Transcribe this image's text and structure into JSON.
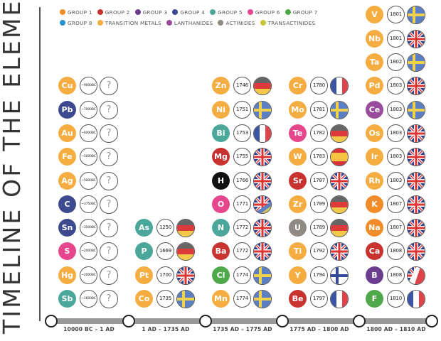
{
  "title": "TIMELINE OF THE ELEMENTS",
  "legend": [
    {
      "label": "GROUP 1",
      "color": "#f28c28"
    },
    {
      "label": "GROUP 2",
      "color": "#c8322f"
    },
    {
      "label": "GROUP 3",
      "color": "#6a3d8f"
    },
    {
      "label": "GROUP 4",
      "color": "#3d4a8f"
    },
    {
      "label": "GROUP 5",
      "color": "#4aa79a"
    },
    {
      "label": "GROUP 6",
      "color": "#e6468c"
    },
    {
      "label": "GROUP 7",
      "color": "#4fa84a"
    },
    {
      "label": "GROUP 8",
      "color": "#2f8fd1"
    },
    {
      "label": "TRANSITION METALS",
      "color": "#f5ad42"
    },
    {
      "label": "LANTHANIDES",
      "color": "#9a4c9c"
    },
    {
      "label": "ACTINIDES",
      "color": "#8f8a84"
    },
    {
      "label": "TRANSACTINIDES",
      "color": "#c8c43a"
    }
  ],
  "eras": [
    {
      "label": "10000 BC – 1 AD",
      "elements": [
        {
          "symbol": "Cu",
          "year": "~9000BC",
          "color": "#f5ad42",
          "country": "unknown"
        },
        {
          "symbol": "Pb",
          "year": "~7000BC",
          "color": "#3d4a8f",
          "country": "unknown"
        },
        {
          "symbol": "Au",
          "year": "~6000BC",
          "color": "#f5ad42",
          "country": "unknown"
        },
        {
          "symbol": "Fe",
          "year": "~5000BC",
          "color": "#f5ad42",
          "country": "unknown"
        },
        {
          "symbol": "Ag",
          "year": "~5000BC",
          "color": "#f5ad42",
          "country": "unknown"
        },
        {
          "symbol": "C",
          "year": "~3750BC",
          "color": "#3d4a8f",
          "country": "unknown"
        },
        {
          "symbol": "Sn",
          "year": "~3500BC",
          "color": "#3d4a8f",
          "country": "unknown"
        },
        {
          "symbol": "S",
          "year": "~2000BC",
          "color": "#e6468c",
          "country": "unknown"
        },
        {
          "symbol": "Hg",
          "year": "~2000BC",
          "color": "#f5ad42",
          "country": "unknown"
        },
        {
          "symbol": "Sb",
          "year": "~1600BC",
          "color": "#4aa79a",
          "country": "unknown"
        }
      ]
    },
    {
      "label": "1 AD – 1735 AD",
      "elements": [
        {
          "symbol": "As",
          "year": "1250",
          "color": "#4aa79a",
          "country": "germany"
        },
        {
          "symbol": "P",
          "year": "1669",
          "color": "#4aa79a",
          "country": "germany"
        },
        {
          "symbol": "Pt",
          "year": "1700",
          "color": "#f5ad42",
          "country": "uk"
        },
        {
          "symbol": "Co",
          "year": "1735",
          "color": "#f5ad42",
          "country": "sweden"
        }
      ]
    },
    {
      "label": "1735 AD – 1775 AD",
      "elements": [
        {
          "symbol": "Zn",
          "year": "1746",
          "color": "#f5ad42",
          "country": "germany"
        },
        {
          "symbol": "Ni",
          "year": "1751",
          "color": "#f5ad42",
          "country": "sweden"
        },
        {
          "symbol": "Bi",
          "year": "1753",
          "color": "#4aa79a",
          "country": "france"
        },
        {
          "symbol": "Mg",
          "year": "1755",
          "color": "#c8322f",
          "country": "uk"
        },
        {
          "symbol": "H",
          "year": "1766",
          "color": "#111111",
          "country": "uk"
        },
        {
          "symbol": "O",
          "year": "1771",
          "color": "#e6468c",
          "country": "uk-sweden"
        },
        {
          "symbol": "N",
          "year": "1772",
          "color": "#4aa79a",
          "country": "uk"
        },
        {
          "symbol": "Ba",
          "year": "1772",
          "color": "#c8322f",
          "country": "uk"
        },
        {
          "symbol": "Cl",
          "year": "1774",
          "color": "#4fa84a",
          "country": "sweden"
        },
        {
          "symbol": "Mn",
          "year": "1774",
          "color": "#f5ad42",
          "country": "sweden"
        }
      ]
    },
    {
      "label": "1775 AD – 1800 AD",
      "elements": [
        {
          "symbol": "Cr",
          "year": "1780",
          "color": "#f5ad42",
          "country": "france"
        },
        {
          "symbol": "Mo",
          "year": "1781",
          "color": "#f5ad42",
          "country": "sweden"
        },
        {
          "symbol": "Te",
          "year": "1782",
          "color": "#e6468c",
          "country": "germany"
        },
        {
          "symbol": "W",
          "year": "1783",
          "color": "#f5ad42",
          "country": "spain"
        },
        {
          "symbol": "Sr",
          "year": "1787",
          "color": "#c8322f",
          "country": "uk"
        },
        {
          "symbol": "Zr",
          "year": "1789",
          "color": "#f5ad42",
          "country": "germany"
        },
        {
          "symbol": "U",
          "year": "1789",
          "color": "#8f8a84",
          "country": "germany"
        },
        {
          "symbol": "Ti",
          "year": "1792",
          "color": "#f5ad42",
          "country": "uk"
        },
        {
          "symbol": "Y",
          "year": "1794",
          "color": "#f5ad42",
          "country": "finland"
        },
        {
          "symbol": "Be",
          "year": "1797",
          "color": "#c8322f",
          "country": "france"
        }
      ]
    },
    {
      "label": "1800 AD – 1810 AD",
      "elements": [
        {
          "symbol": "V",
          "year": "1801",
          "color": "#f5ad42",
          "country": "sweden"
        },
        {
          "symbol": "Nb",
          "year": "1801",
          "color": "#f5ad42",
          "country": "uk"
        },
        {
          "symbol": "Ta",
          "year": "1802",
          "color": "#f5ad42",
          "country": "sweden"
        },
        {
          "symbol": "Pd",
          "year": "1803",
          "color": "#f5ad42",
          "country": "uk"
        },
        {
          "symbol": "Ce",
          "year": "1803",
          "color": "#9a4c9c",
          "country": "sweden"
        },
        {
          "symbol": "Os",
          "year": "1803",
          "color": "#f5ad42",
          "country": "uk"
        },
        {
          "symbol": "Ir",
          "year": "1803",
          "color": "#f5ad42",
          "country": "uk"
        },
        {
          "symbol": "Rh",
          "year": "1803",
          "color": "#f5ad42",
          "country": "uk"
        },
        {
          "symbol": "K",
          "year": "1807",
          "color": "#f28c28",
          "country": "uk"
        },
        {
          "symbol": "Na",
          "year": "1807",
          "color": "#f28c28",
          "country": "uk"
        },
        {
          "symbol": "Ca",
          "year": "1808",
          "color": "#c8322f",
          "country": "uk"
        },
        {
          "symbol": "B",
          "year": "1808",
          "color": "#6a3d8f",
          "country": "uk-france"
        },
        {
          "symbol": "F",
          "year": "1810",
          "color": "#4fa84a",
          "country": "france"
        }
      ]
    }
  ]
}
